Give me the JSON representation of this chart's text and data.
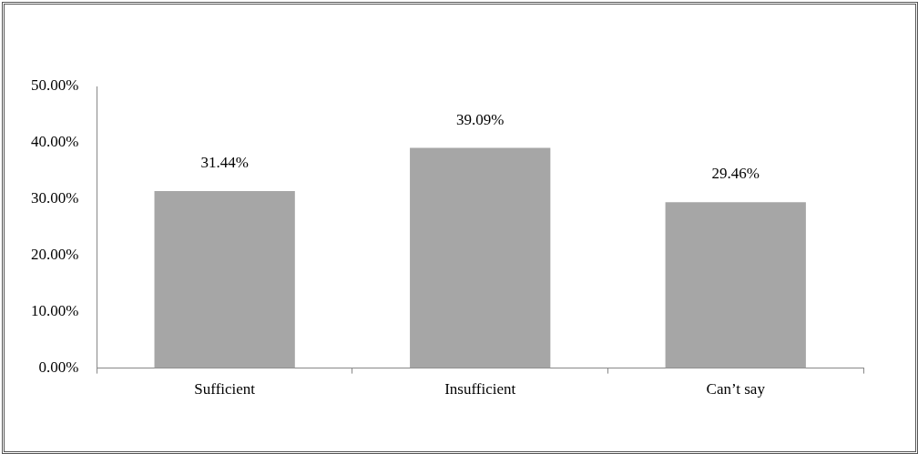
{
  "chart_data": {
    "type": "bar",
    "categories": [
      "Sufficient",
      "Insufficient",
      "Can’t say"
    ],
    "values": [
      31.44,
      39.09,
      29.46
    ],
    "color": "#a6a6a6",
    "value_labels": [
      "31.44%",
      "39.09%",
      "29.46%"
    ],
    "ylim": [
      0,
      50
    ],
    "yticks": [
      {
        "value": 0,
        "label": "0.00%"
      },
      {
        "value": 10,
        "label": "10.00%"
      },
      {
        "value": 20,
        "label": "20.00%"
      },
      {
        "value": 30,
        "label": "30.00%"
      },
      {
        "value": 40,
        "label": "40.00%"
      },
      {
        "value": 50,
        "label": "50.00%"
      }
    ],
    "grid": false,
    "legend": false
  }
}
